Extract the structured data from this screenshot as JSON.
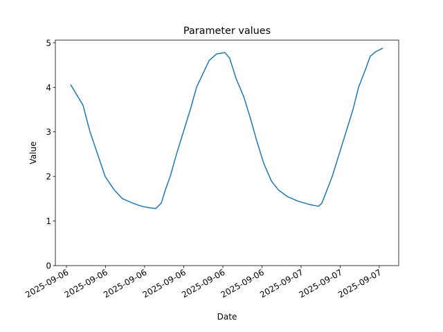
{
  "chart_data": {
    "type": "line",
    "title": "Parameter values",
    "x_label": "Date",
    "y_label": "Value",
    "x": [
      6.32,
      7.27,
      7.81,
      8.97,
      9.66,
      10.3,
      11.1,
      11.79,
      12.32,
      12.85,
      13.27,
      13.65,
      13.96,
      14.44,
      14.97,
      15.5,
      15.98,
      16.46,
      16.94,
      17.52,
      18.16,
      18.53,
      19.01,
      19.59,
      20.12,
      20.6,
      21.13,
      21.72,
      22.25,
      22.94,
      23.73,
      24.53,
      25.33,
      25.59,
      25.86,
      26.39,
      26.92,
      27.45,
      27.98,
      28.41,
      28.94,
      29.31,
      29.73,
      30.27
    ],
    "values": [
      4.06,
      3.6,
      3.0,
      2.0,
      1.7,
      1.5,
      1.4,
      1.33,
      1.3,
      1.28,
      1.4,
      1.75,
      2.0,
      2.5,
      3.0,
      3.5,
      4.0,
      4.3,
      4.6,
      4.75,
      4.78,
      4.65,
      4.2,
      3.8,
      3.3,
      2.8,
      2.3,
      1.9,
      1.7,
      1.55,
      1.45,
      1.38,
      1.33,
      1.4,
      1.6,
      2.0,
      2.5,
      3.0,
      3.5,
      4.0,
      4.4,
      4.7,
      4.8,
      4.88
    ],
    "color": "#1f77b4",
    "xlim": [
      5.15,
      31.49
    ],
    "xticks": [
      {
        "value": 6,
        "label": "2025-09-06"
      },
      {
        "value": 9,
        "label": "2025-09-06"
      },
      {
        "value": 12,
        "label": "2025-09-06"
      },
      {
        "value": 15,
        "label": "2025-09-06"
      },
      {
        "value": 18,
        "label": "2025-09-06"
      },
      {
        "value": 21,
        "label": "2025-09-06"
      },
      {
        "value": 24,
        "label": "2025-09-07"
      },
      {
        "value": 27,
        "label": "2025-09-07"
      },
      {
        "value": 30,
        "label": "2025-09-07"
      }
    ],
    "ylim": [
      0,
      5.06
    ],
    "yticks": [
      0,
      1,
      2,
      3,
      4,
      5
    ]
  }
}
